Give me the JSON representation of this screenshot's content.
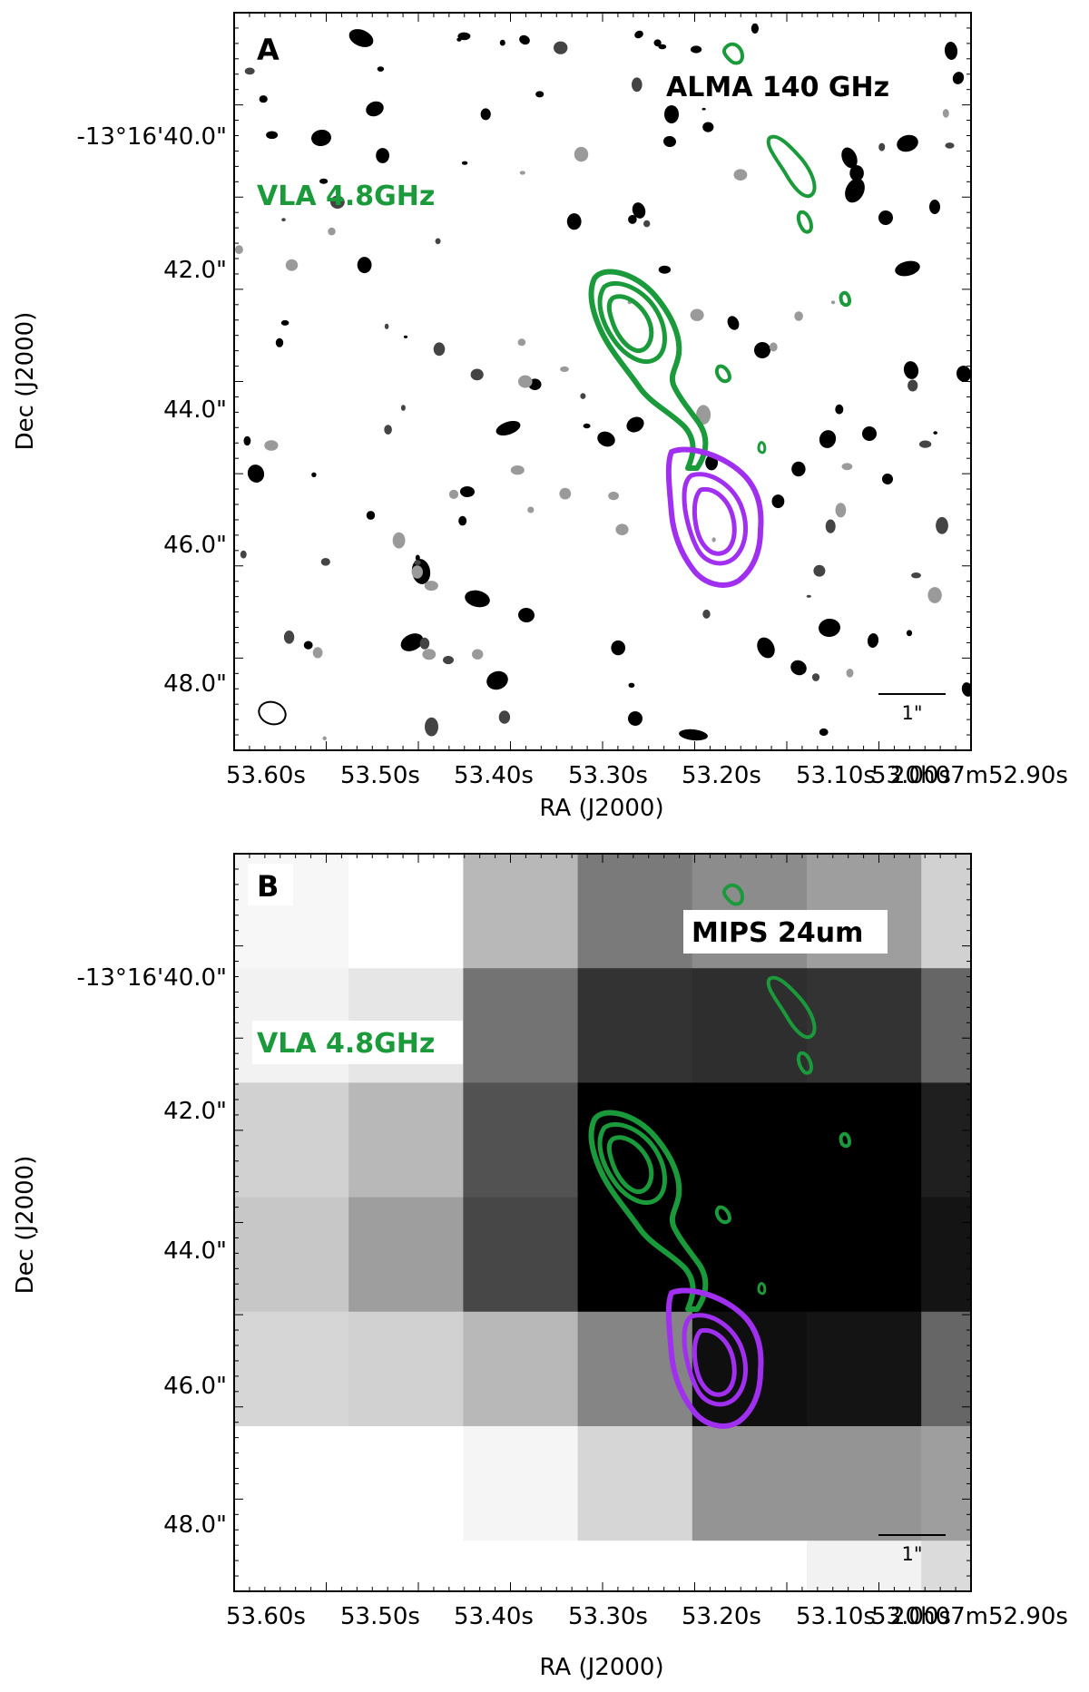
{
  "colors": {
    "radio_contour": "#1a9a3a",
    "alma_contour": "#a02ff0",
    "radio_label": "#1a9a3a",
    "frame": "#000000"
  },
  "chart_data": [
    {
      "type": "heatmap",
      "panel": "A",
      "background_image": "ALMA 140 GHz map",
      "overlay_label": "VLA 4.8GHz",
      "image_label": "ALMA 140 GHz",
      "xlabel": "RA (J2000)",
      "ylabel": "Dec (J2000)",
      "x_tick_labels": [
        "53.60s",
        "53.50s",
        "53.40s",
        "53.30s",
        "53.20s",
        "53.10s",
        "53.00s",
        "20h07m52.90s"
      ],
      "y_tick_labels": [
        "-13°16'40.0\"",
        "42.0\"",
        "44.0\"",
        "46.0\"",
        "48.0\""
      ],
      "scale_bar_label": "1\"",
      "beam_shown": true
    },
    {
      "type": "heatmap",
      "panel": "B",
      "background_image": "MIPS 24um map",
      "overlay_label": "VLA 4.8GHz",
      "image_label": "MIPS 24um",
      "xlabel": "RA (J2000)",
      "ylabel": "Dec (J2000)",
      "x_tick_labels": [
        "53.60s",
        "53.50s",
        "53.40s",
        "53.30s",
        "53.20s",
        "53.10s",
        "53.00s",
        "20h07m52.90s"
      ],
      "y_tick_labels": [
        "-13°16'40.0\"",
        "42.0\"",
        "44.0\"",
        "46.0\"",
        "48.0\""
      ],
      "scale_bar_label": "1\"",
      "pixel_grid": [
        [
          0.97,
          1.0,
          0.72,
          0.48,
          0.55,
          0.62,
          0.82
        ],
        [
          0.95,
          0.9,
          0.45,
          0.2,
          0.18,
          0.2,
          0.4
        ],
        [
          0.82,
          0.72,
          0.32,
          0.0,
          0.0,
          0.0,
          0.12
        ],
        [
          0.78,
          0.62,
          0.28,
          0.0,
          0.0,
          0.0,
          0.08
        ],
        [
          0.84,
          0.82,
          0.72,
          0.52,
          0.06,
          0.08,
          0.4
        ],
        [
          1.0,
          1.0,
          0.96,
          0.84,
          0.58,
          0.58,
          0.62
        ],
        [
          1.0,
          1.0,
          1.0,
          1.0,
          1.0,
          0.95,
          0.86
        ]
      ]
    }
  ]
}
